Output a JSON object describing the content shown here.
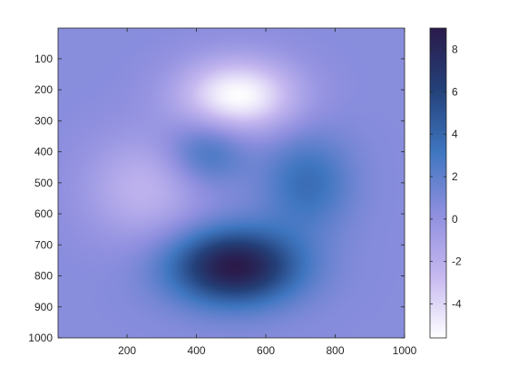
{
  "chart_data": {
    "type": "heatmap",
    "title": "",
    "xlabel": "",
    "ylabel": "",
    "xlim": [
      1,
      1000
    ],
    "ylim": [
      1,
      1000
    ],
    "y_reversed": true,
    "x_ticks": [
      200,
      400,
      600,
      800,
      1000
    ],
    "x_tick_labels": [
      "200",
      "400",
      "600",
      "800",
      "1000"
    ],
    "y_ticks": [
      100,
      200,
      300,
      400,
      500,
      600,
      700,
      800,
      900,
      1000
    ],
    "y_tick_labels": [
      "100",
      "200",
      "300",
      "400",
      "500",
      "600",
      "700",
      "800",
      "900",
      "1000"
    ],
    "colorbar": {
      "range": [
        -5.6,
        9.0
      ],
      "ticks": [
        8,
        6,
        4,
        2,
        0,
        -2,
        -4
      ],
      "tick_labels": [
        "8",
        "6",
        "4",
        "2",
        "0",
        "-2",
        "-4"
      ],
      "colormap": [
        "#ffffff",
        "#c6b8f0",
        "#8f8fdf",
        "#3f76c0",
        "#24417a",
        "#2a1a4a"
      ]
    },
    "background_value": 0.5,
    "features": [
      {
        "x": 510,
        "y": 770,
        "value": 9.0,
        "sigma_x": 130,
        "sigma_y": 85
      },
      {
        "x": 430,
        "y": 400,
        "value": 3.4,
        "sigma_x": 80,
        "sigma_y": 75
      },
      {
        "x": 720,
        "y": 500,
        "value": 3.6,
        "sigma_x": 90,
        "sigma_y": 110
      },
      {
        "x": 520,
        "y": 220,
        "value": -5.6,
        "sigma_x": 120,
        "sigma_y": 85
      },
      {
        "x": 250,
        "y": 520,
        "value": -2.3,
        "sigma_x": 120,
        "sigma_y": 120
      }
    ]
  }
}
